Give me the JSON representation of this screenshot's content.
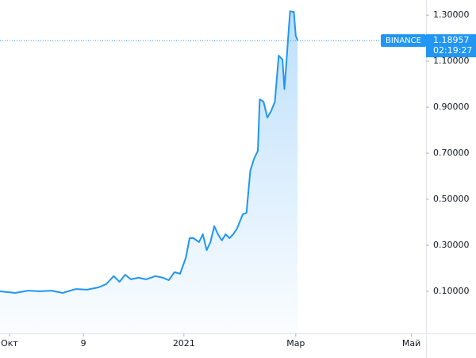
{
  "chart_data": {
    "type": "line",
    "x": [
      -5,
      3,
      10,
      16,
      22,
      28,
      35,
      41,
      47,
      51,
      55,
      58,
      61,
      64,
      68,
      72,
      77,
      81,
      84,
      87,
      90,
      93,
      95,
      97,
      100,
      102,
      104,
      106,
      108,
      110,
      112,
      114,
      116,
      118,
      120,
      123,
      125,
      127,
      129,
      131,
      132,
      134,
      136,
      138,
      140,
      142,
      144,
      145,
      146,
      148,
      150,
      151,
      152
    ],
    "series": [
      {
        "name": "BINANCE",
        "color": "#2196f3",
        "values": [
          0.1,
          0.093,
          0.103,
          0.1,
          0.103,
          0.093,
          0.11,
          0.107,
          0.117,
          0.131,
          0.166,
          0.141,
          0.172,
          0.152,
          0.159,
          0.152,
          0.166,
          0.159,
          0.148,
          0.183,
          0.176,
          0.245,
          0.331,
          0.331,
          0.314,
          0.348,
          0.279,
          0.314,
          0.383,
          0.348,
          0.321,
          0.348,
          0.331,
          0.348,
          0.372,
          0.434,
          0.441,
          0.624,
          0.676,
          0.71,
          0.934,
          0.924,
          0.855,
          0.883,
          0.924,
          1.124,
          1.107,
          0.979,
          1.09,
          1.317,
          1.314,
          1.21,
          1.19
        ]
      }
    ],
    "xlim": [
      -5,
      219.7
    ],
    "ylim": [
      -0.083,
      1.366
    ],
    "xticks": [
      {
        "value": 0,
        "label": "Окт"
      },
      {
        "value": 39,
        "label": "9"
      },
      {
        "value": 92,
        "label": "2021"
      },
      {
        "value": 151,
        "label": "Мар"
      },
      {
        "value": 212,
        "label": "Май"
      }
    ],
    "yticks": [
      {
        "value": 0.1,
        "label": "0.10000"
      },
      {
        "value": 0.3,
        "label": "0.30000"
      },
      {
        "value": 0.5,
        "label": "0.50000"
      },
      {
        "value": 0.7,
        "label": "0.70000"
      },
      {
        "value": 0.9,
        "label": "0.90000"
      },
      {
        "value": 1.1,
        "label": "1.10000"
      },
      {
        "value": 1.3,
        "label": "1.30000"
      }
    ],
    "last_price": 1.18957,
    "countdown": "02:19:27"
  }
}
